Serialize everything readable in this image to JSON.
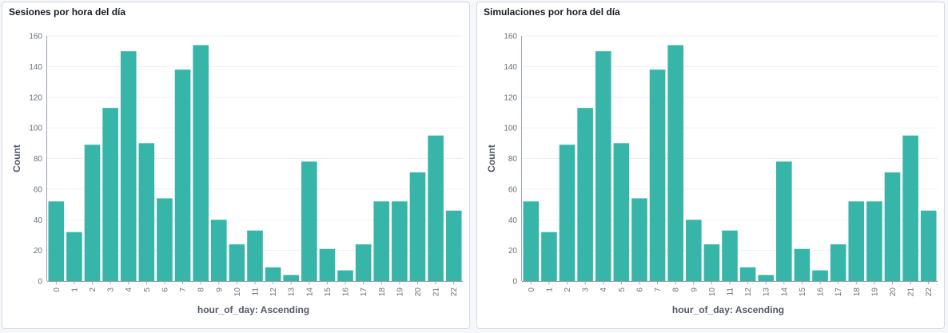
{
  "panels": [
    {
      "title": "Sesiones por hora del día",
      "chart_data": {
        "type": "bar",
        "categories": [
          "0",
          "1",
          "2",
          "3",
          "4",
          "5",
          "6",
          "7",
          "8",
          "9",
          "10",
          "11",
          "12",
          "13",
          "14",
          "15",
          "16",
          "17",
          "18",
          "19",
          "20",
          "21",
          "22"
        ],
        "values": [
          52,
          32,
          89,
          113,
          150,
          90,
          54,
          138,
          154,
          40,
          24,
          33,
          9,
          4,
          78,
          21,
          7,
          24,
          52,
          52,
          71,
          95,
          46
        ],
        "xlabel": "hour_of_day: Ascending",
        "ylabel": "Count",
        "ylim": [
          0,
          160
        ],
        "yticks": [
          0,
          20,
          40,
          60,
          80,
          100,
          120,
          140,
          160
        ],
        "grid": true,
        "bar_color": "#36b5a8"
      }
    },
    {
      "title": "Simulaciones por hora del día",
      "chart_data": {
        "type": "bar",
        "categories": [
          "0",
          "1",
          "2",
          "3",
          "4",
          "5",
          "6",
          "7",
          "8",
          "9",
          "10",
          "11",
          "12",
          "13",
          "14",
          "15",
          "16",
          "17",
          "18",
          "19",
          "20",
          "21",
          "22"
        ],
        "values": [
          52,
          32,
          89,
          113,
          150,
          90,
          54,
          138,
          154,
          40,
          24,
          33,
          9,
          4,
          78,
          21,
          7,
          24,
          52,
          52,
          71,
          95,
          46
        ],
        "xlabel": "hour_of_day: Ascending",
        "ylabel": "Count",
        "ylim": [
          0,
          160
        ],
        "yticks": [
          0,
          20,
          40,
          60,
          80,
          100,
          120,
          140,
          160
        ],
        "grid": true,
        "bar_color": "#36b5a8"
      }
    }
  ]
}
